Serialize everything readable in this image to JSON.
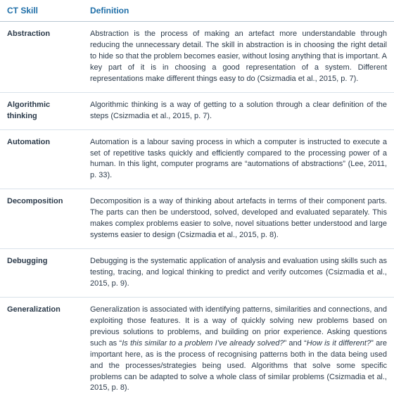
{
  "colors": {
    "header_text": "#1f6fa8",
    "body_text": "#2b3a4a",
    "row_border": "#d9e2ea",
    "header_border": "#b8c6d1",
    "background": "#ffffff"
  },
  "headers": {
    "skill": "CT Skill",
    "definition": "Definition"
  },
  "rows": [
    {
      "skill": "Abstraction",
      "definition": "Abstraction is the process of making an artefact more understandable through reducing the unnecessary detail. The skill in abstraction is in choosing the right detail to hide so that the problem becomes easier, without losing anything that is important. A key part of it is in choosing a good representation of a system. Different representations make different things easy to do (Csizmadia et al., 2015, p. 7)."
    },
    {
      "skill": "Algorithmic thinking",
      "definition": "Algorithmic thinking is a way of getting to a solution through a clear definition of the steps (Csizmadia et al., 2015, p. 7)."
    },
    {
      "skill": "Automation",
      "definition": "Automation is a labour saving process in which a computer is instructed to execute a set of repetitive tasks quickly and efficiently compared to the processing power of a human. In this light, computer programs are “automations of abstractions” (Lee, 2011, p. 33)."
    },
    {
      "skill": "Decomposition",
      "definition": "Decomposition is a way of thinking about artefacts in terms of their component parts. The parts can then be understood, solved, developed and evaluated separately. This makes complex problems easier to solve, novel situations better understood and large systems easier to design (Csizmadia et al., 2015, p. 8)."
    },
    {
      "skill": "Debugging",
      "definition": "Debugging is the systematic application of analysis and evaluation using skills such as testing, tracing, and logical thinking to predict and verify outcomes (Csizmadia et al., 2015, p. 9)."
    },
    {
      "skill": "Generalization",
      "definition": "Generalization is associated with identifying patterns, similarities and connections, and exploiting those features. It is a way of quickly solving new problems based on previous solutions to problems, and building on prior experience. Asking questions such as “<em>Is this similar to a problem I’ve already solved?</em>” and “<em>How is it different?</em>” are important here, as is the process of recognising patterns both in the data being used and the processes/strategies being used. Algorithms that solve some specific problems can be adapted to solve a whole class of similar problems (Csizmadia et al., 2015, p. 8)."
    }
  ]
}
